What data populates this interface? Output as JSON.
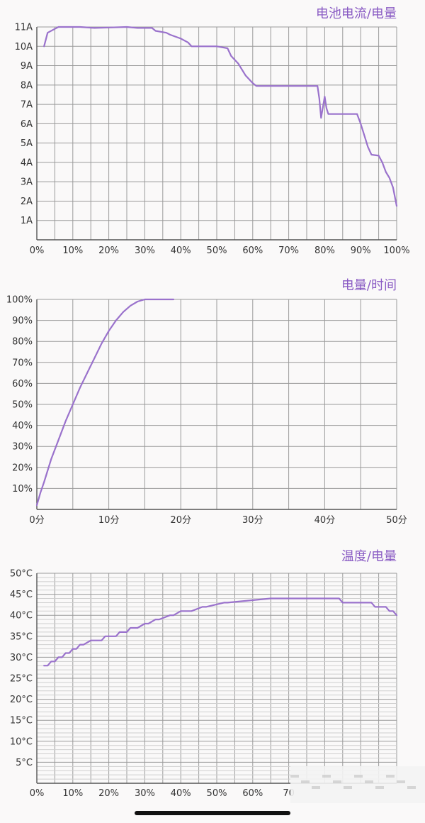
{
  "colors": {
    "series": "#9a72cc",
    "title": "#8a5cc4",
    "grid_major": "#9a9a9a",
    "grid_minor": "#cfcfcf",
    "tick_text": "#333333",
    "background": "#faf9f9"
  },
  "chart_data": [
    {
      "type": "line",
      "title": "电池电流/电量",
      "xlabel": "",
      "ylabel": "",
      "xlim": [
        0,
        100
      ],
      "ylim": [
        0,
        11
      ],
      "x_ticks": [
        0,
        10,
        20,
        30,
        40,
        50,
        60,
        70,
        80,
        90,
        100
      ],
      "x_tick_labels": [
        "0%",
        "10%",
        "20%",
        "30%",
        "40%",
        "50%",
        "60%",
        "70%",
        "80%",
        "90%",
        "100%"
      ],
      "x_minor_step": 5,
      "y_ticks": [
        1,
        2,
        3,
        4,
        5,
        6,
        7,
        8,
        9,
        10,
        11
      ],
      "y_tick_labels": [
        "1A",
        "2A",
        "3A",
        "4A",
        "5A",
        "6A",
        "7A",
        "8A",
        "9A",
        "10A",
        "11A"
      ],
      "y_minor_step": 1,
      "grid": true,
      "series": [
        {
          "x": [
            2,
            3,
            5,
            6,
            9,
            12,
            16,
            20,
            25,
            28,
            32,
            33,
            36,
            37,
            40,
            42,
            43,
            50,
            53,
            54,
            56,
            58,
            60,
            61,
            78,
            78.5,
            79,
            80,
            80.5,
            81,
            82,
            86,
            89,
            90,
            91,
            92,
            93,
            95,
            96,
            97,
            98,
            99,
            100
          ],
          "y": [
            10,
            10.7,
            10.9,
            11,
            11,
            11,
            10.95,
            10.97,
            11,
            10.95,
            10.95,
            10.8,
            10.7,
            10.6,
            10.4,
            10.2,
            10,
            10,
            9.9,
            9.5,
            9.1,
            8.5,
            8.1,
            7.95,
            7.95,
            7.3,
            6.3,
            7.4,
            6.8,
            6.5,
            6.5,
            6.5,
            6.5,
            6,
            5.4,
            4.8,
            4.4,
            4.35,
            4,
            3.5,
            3.2,
            2.7,
            1.75
          ]
        }
      ]
    },
    {
      "type": "line",
      "title": "电量/时间",
      "xlabel": "",
      "ylabel": "",
      "xlim": [
        0,
        50
      ],
      "ylim": [
        0,
        100
      ],
      "x_ticks": [
        0,
        10,
        20,
        30,
        40,
        50
      ],
      "x_tick_labels": [
        "0分",
        "10分",
        "20分",
        "30分",
        "40分",
        "50分"
      ],
      "x_minor_step": 5,
      "y_ticks": [
        10,
        20,
        30,
        40,
        50,
        60,
        70,
        80,
        90,
        100
      ],
      "y_tick_labels": [
        "10%",
        "20%",
        "30%",
        "40%",
        "50%",
        "60%",
        "70%",
        "80%",
        "90%",
        "100%"
      ],
      "y_minor_step": 10,
      "grid": true,
      "series": [
        {
          "x": [
            0,
            0.5,
            1,
            2,
            3,
            4,
            5,
            6,
            7,
            8,
            9,
            10,
            11,
            12,
            13,
            14,
            15,
            16,
            17,
            18,
            19
          ],
          "y": [
            2,
            8,
            13,
            24,
            33,
            42,
            50,
            58,
            65,
            72,
            79,
            85,
            90,
            94,
            97,
            99,
            100,
            100,
            100,
            100,
            100
          ]
        }
      ]
    },
    {
      "type": "line",
      "title": "温度/电量",
      "xlabel": "",
      "ylabel": "",
      "xlim": [
        0,
        100
      ],
      "ylim": [
        0,
        50
      ],
      "x_ticks": [
        0,
        10,
        20,
        30,
        40,
        50,
        60,
        70
      ],
      "x_tick_labels": [
        "0%",
        "10%",
        "20%",
        "30%",
        "40%",
        "50%",
        "60%",
        "70"
      ],
      "x_minor_step": 5,
      "y_ticks": [
        5,
        10,
        15,
        20,
        25,
        30,
        35,
        40,
        45,
        50
      ],
      "y_tick_labels": [
        "5°C",
        "10°C",
        "15°C",
        "20°C",
        "25°C",
        "30°C",
        "35°C",
        "40°C",
        "45°C",
        "50°C"
      ],
      "y_minor_step": 1,
      "grid": true,
      "series": [
        {
          "x": [
            2,
            3,
            4,
            5,
            6,
            7,
            8,
            9,
            10,
            11,
            12,
            13,
            15,
            18,
            19,
            22,
            23,
            25,
            26,
            28,
            30,
            31,
            33,
            34,
            37,
            38,
            40,
            43,
            46,
            47,
            52,
            53,
            65,
            66,
            84,
            85,
            93,
            94,
            97,
            98,
            99,
            100
          ],
          "y": [
            28,
            28,
            29,
            29,
            30,
            30,
            31,
            31,
            32,
            32,
            33,
            33,
            34,
            34,
            35,
            35,
            36,
            36,
            37,
            37,
            38,
            38,
            39,
            39,
            40,
            40,
            41,
            41,
            42,
            42,
            43,
            43,
            44,
            44,
            44,
            43,
            43,
            42,
            42,
            41,
            41,
            40
          ]
        }
      ]
    }
  ]
}
